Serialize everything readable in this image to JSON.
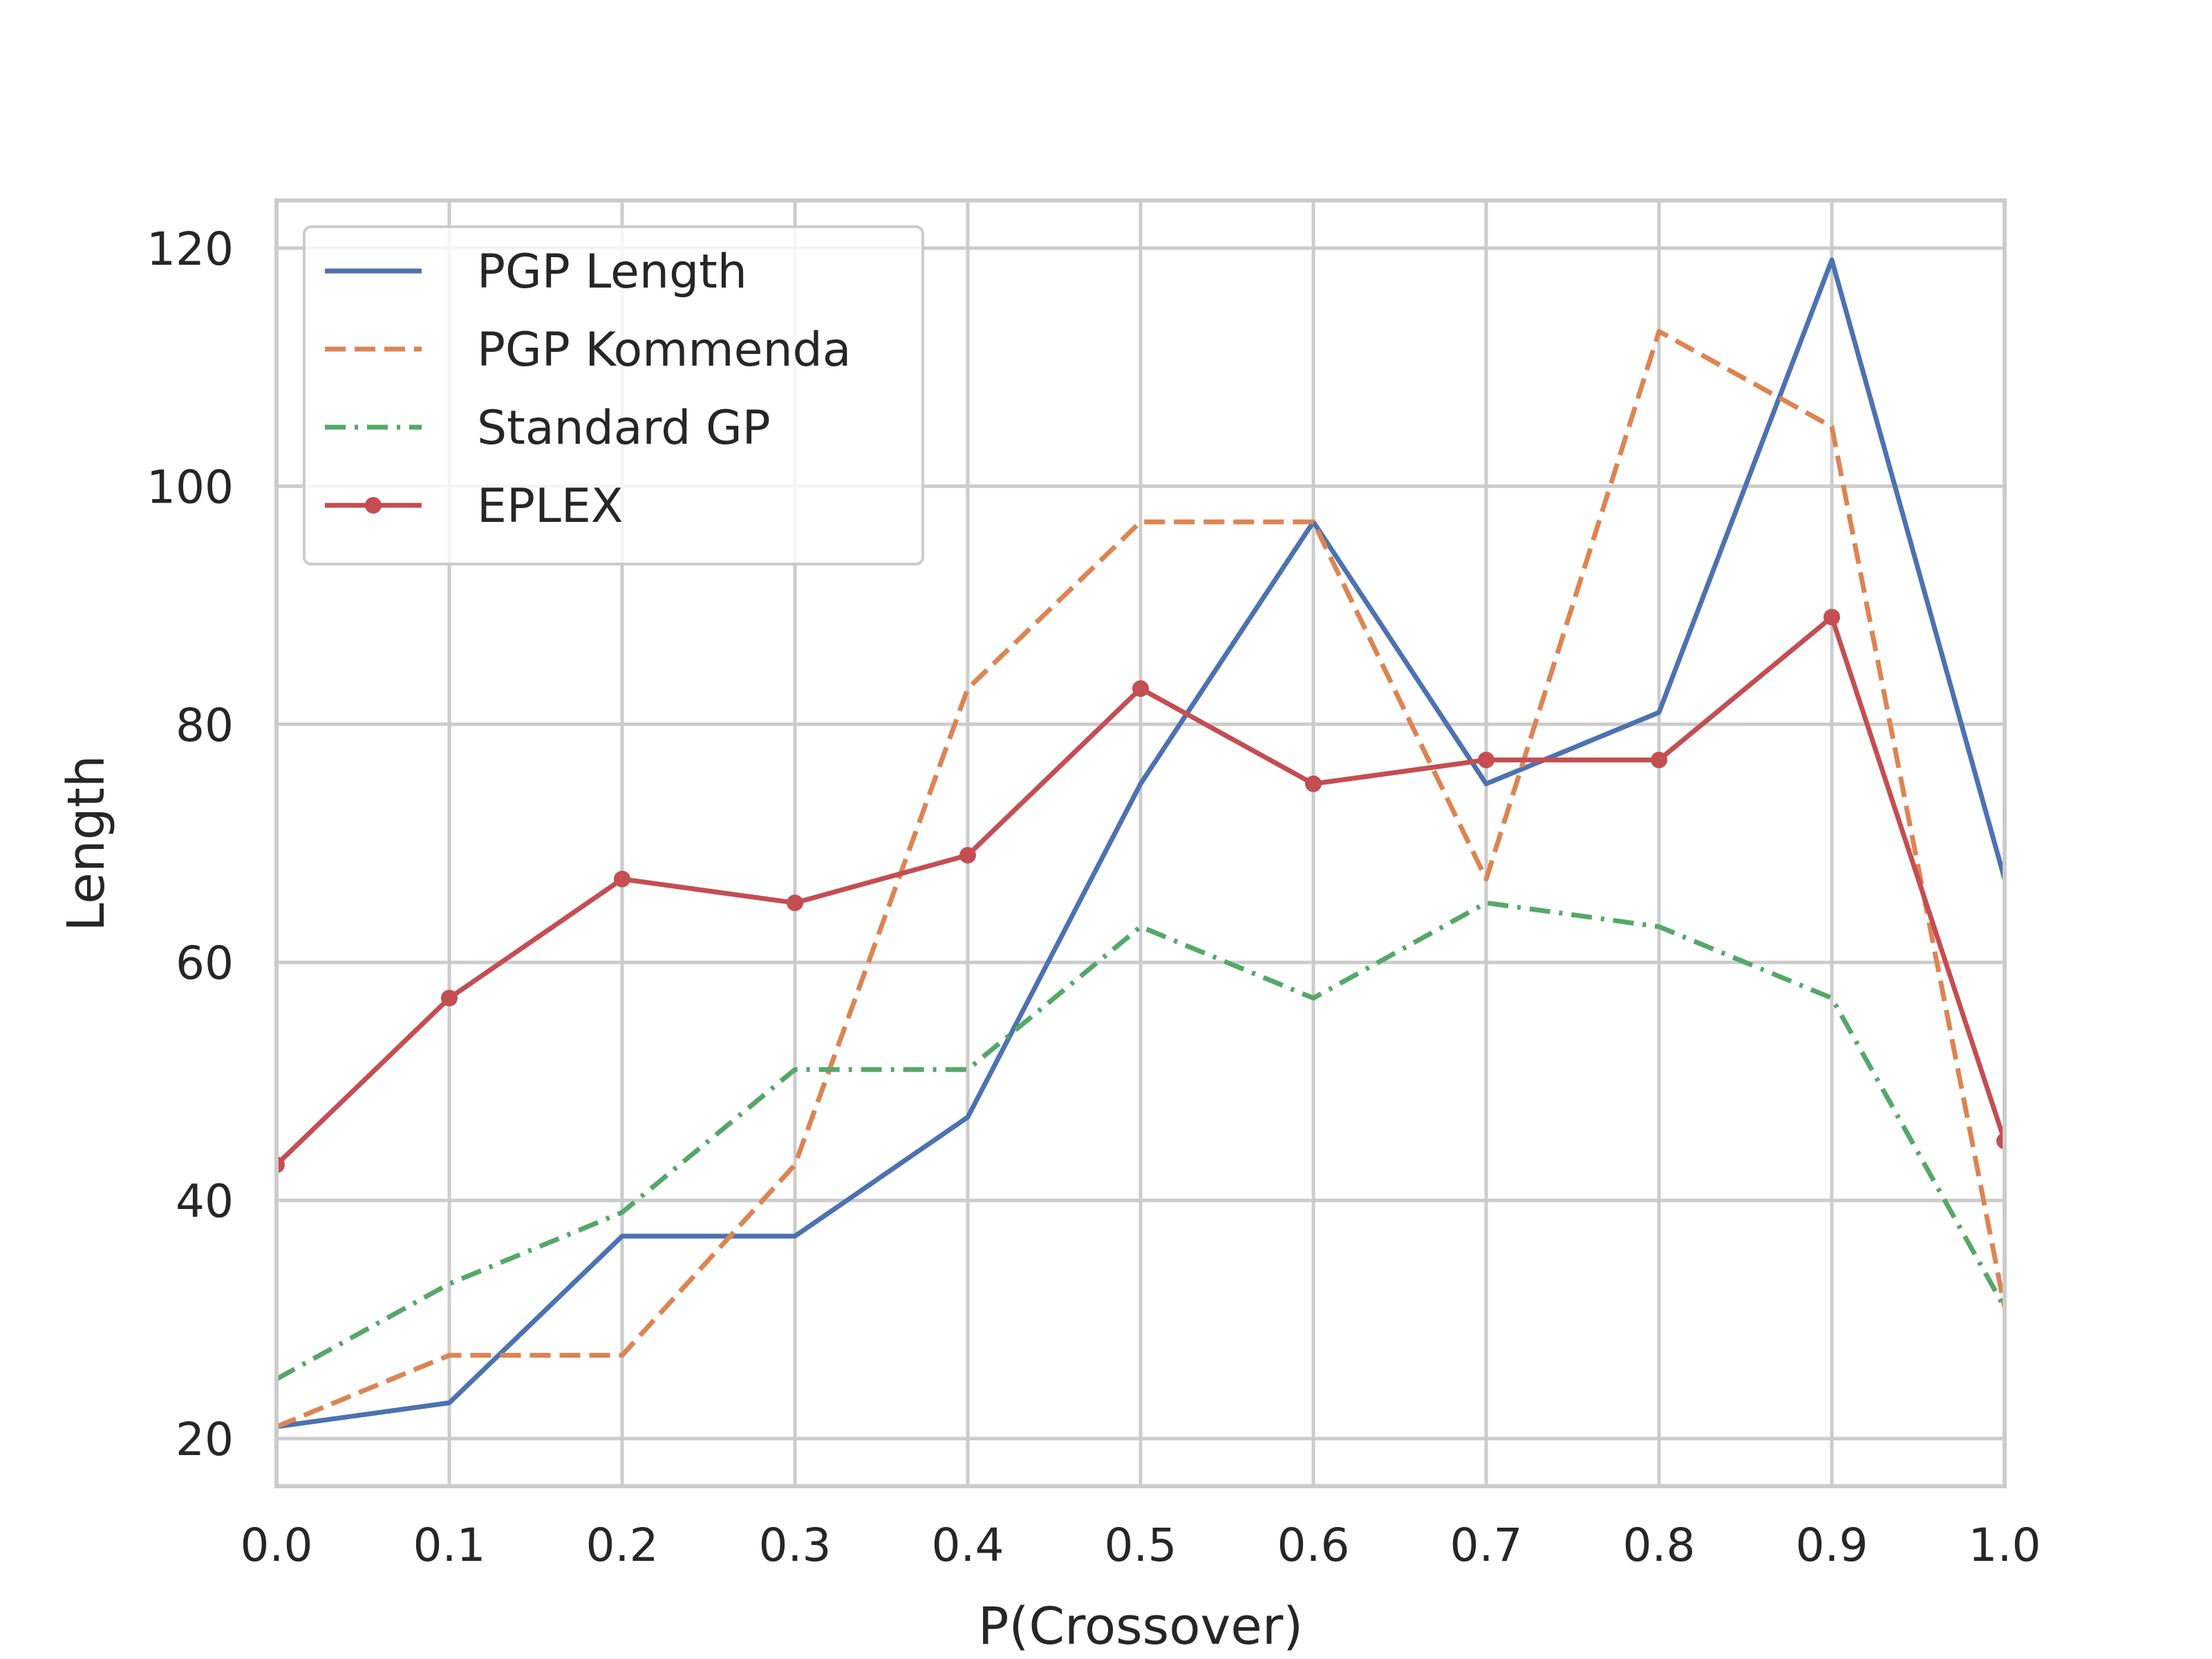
{
  "chart_data": {
    "type": "line",
    "title": "",
    "xlabel": "P(Crossover)",
    "ylabel": "Length",
    "xlim": [
      0.0,
      1.0
    ],
    "ylim": [
      16,
      124
    ],
    "x": [
      0.0,
      0.1,
      0.2,
      0.3,
      0.4,
      0.5,
      0.6,
      0.7,
      0.8,
      0.9,
      1.0
    ],
    "xticks": [
      "0.0",
      "0.1",
      "0.2",
      "0.3",
      "0.4",
      "0.5",
      "0.6",
      "0.7",
      "0.8",
      "0.9",
      "1.0"
    ],
    "yticks": [
      20,
      40,
      60,
      80,
      100,
      120
    ],
    "grid": true,
    "legend_position": "top-left",
    "series": [
      {
        "name": "PGP Length",
        "color": "#4c72b0",
        "style": "solid",
        "marker": "none",
        "values": [
          21,
          23,
          37,
          37,
          47,
          75,
          97,
          75,
          81,
          119,
          67
        ]
      },
      {
        "name": "PGP Kommenda",
        "color": "#dd8452",
        "style": "dashed",
        "marker": "none",
        "values": [
          21,
          27,
          27,
          43,
          83,
          97,
          97,
          67,
          113,
          105,
          31
        ]
      },
      {
        "name": "Standard GP",
        "color": "#55a868",
        "style": "dashdot",
        "marker": "none",
        "values": [
          25,
          33,
          39,
          51,
          51,
          63,
          57,
          65,
          63,
          57,
          31
        ]
      },
      {
        "name": "EPLEX",
        "color": "#c44e52",
        "style": "solid",
        "marker": "circle",
        "values": [
          43,
          57,
          67,
          65,
          69,
          83,
          75,
          77,
          77,
          89,
          45
        ]
      }
    ]
  }
}
